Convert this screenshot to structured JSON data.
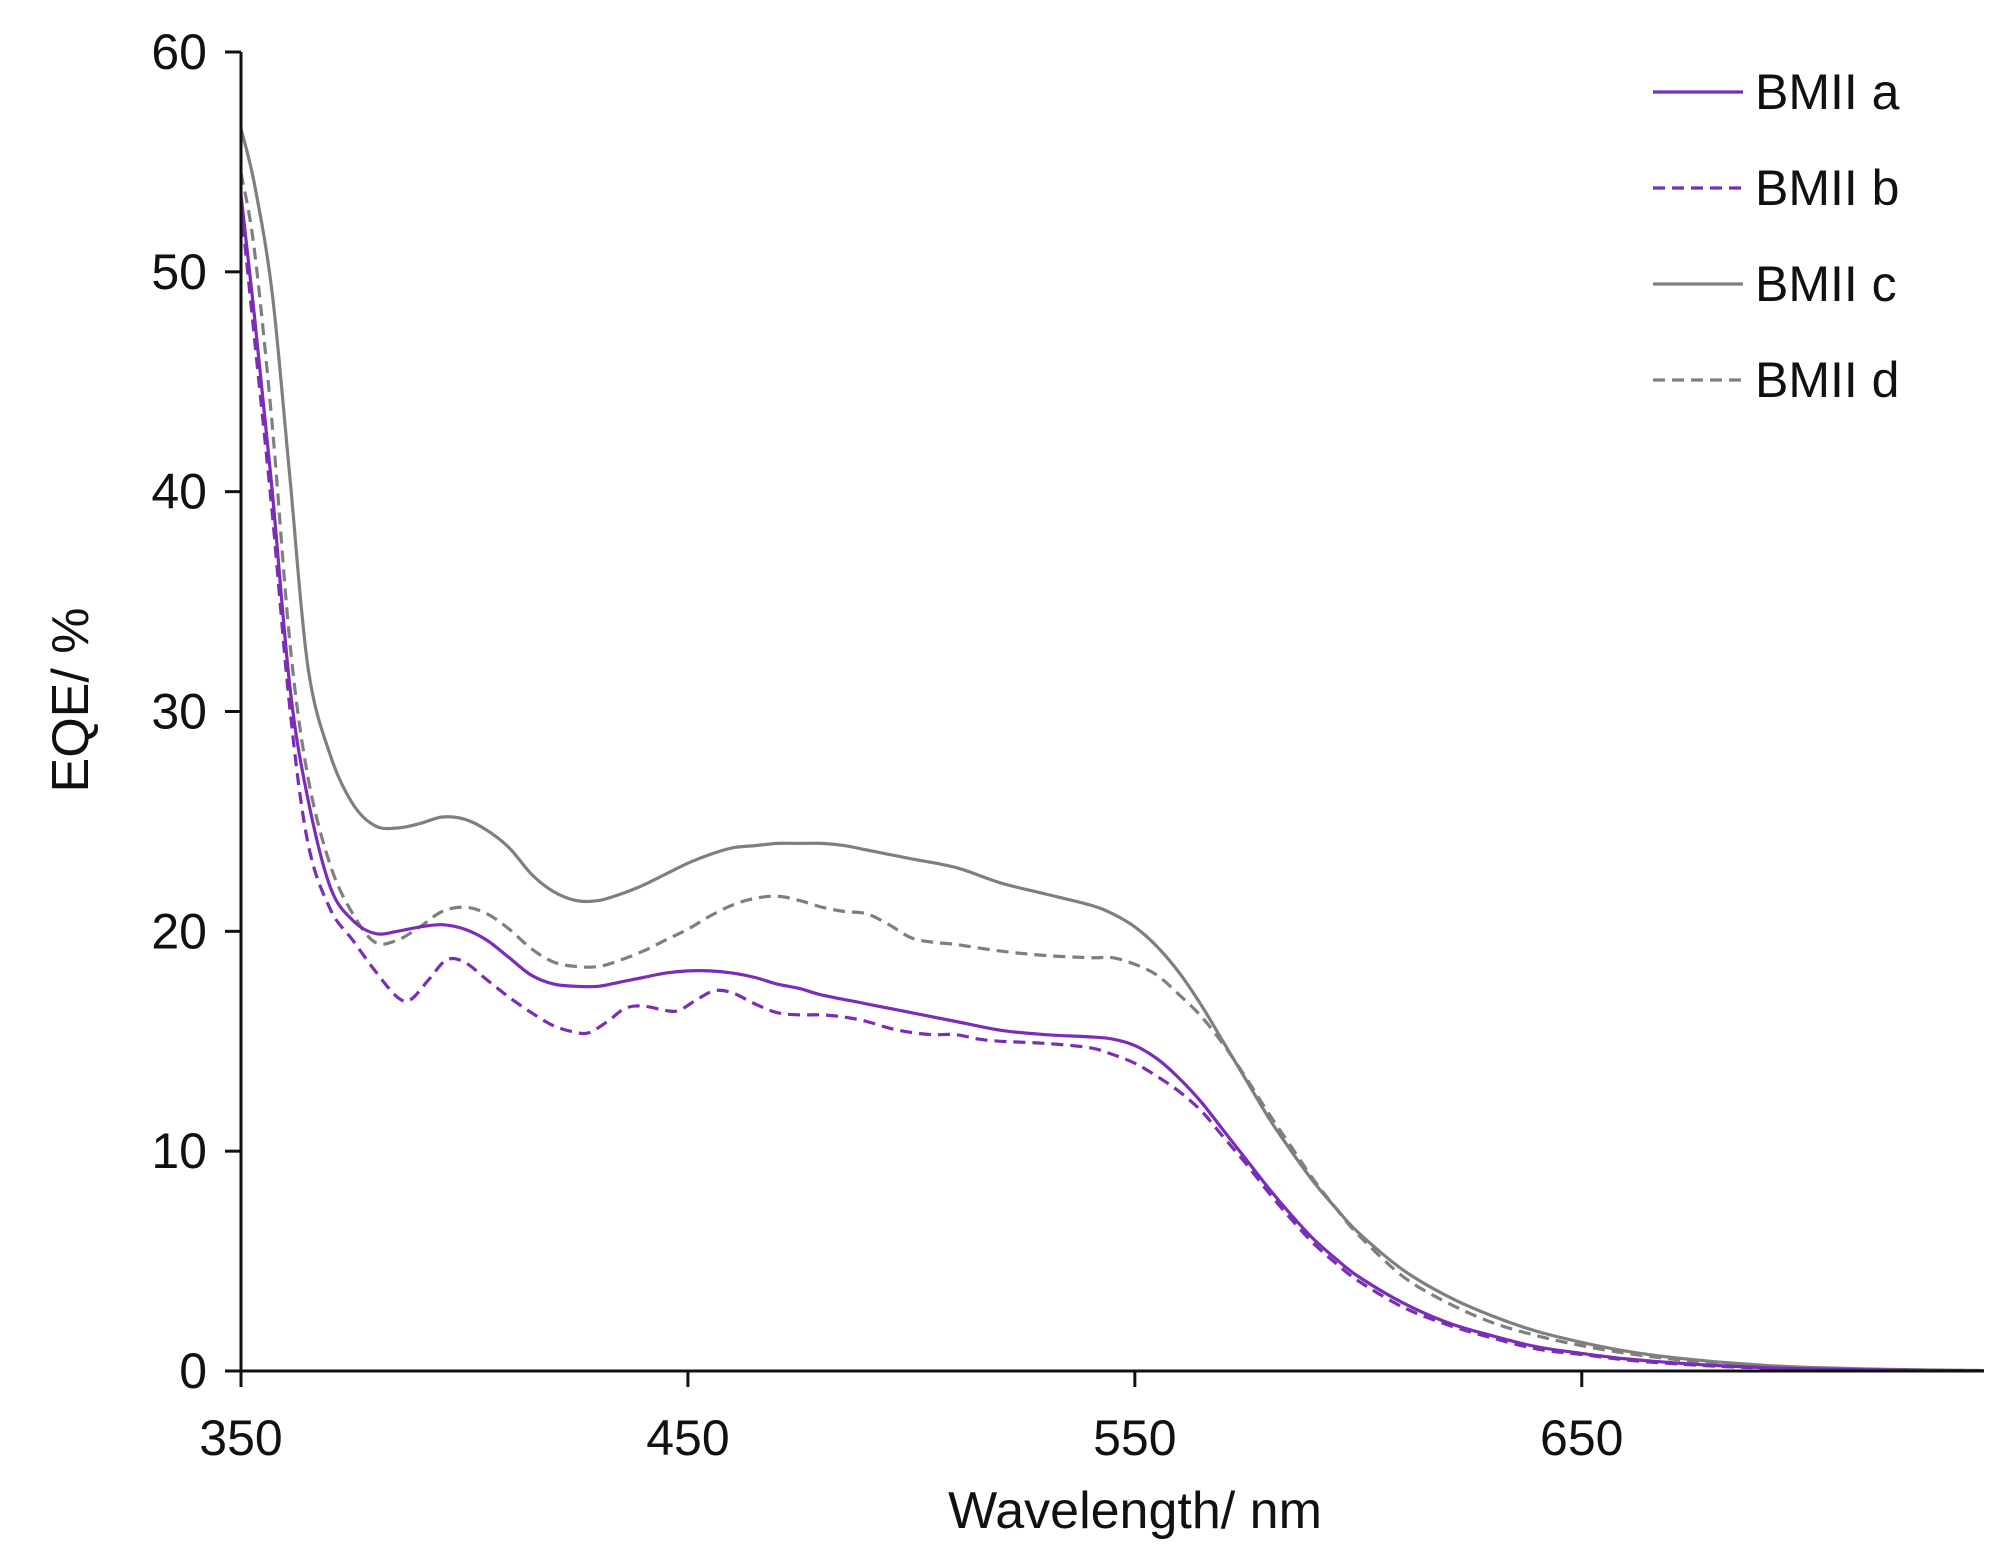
{
  "chart_data": {
    "type": "line",
    "title": "",
    "xlabel": "Wavelength/ nm",
    "ylabel": "EQE/ %",
    "xlim": [
      350,
      740
    ],
    "ylim": [
      0,
      60
    ],
    "xticks": [
      350,
      450,
      550,
      650
    ],
    "yticks": [
      0,
      10,
      20,
      30,
      40,
      50,
      60
    ],
    "grid": false,
    "legend_position": "top-right",
    "series": [
      {
        "name": "BMII a",
        "color": "#7B2DB5",
        "dash": "solid",
        "points": [
          [
            350,
            53.5
          ],
          [
            353,
            48
          ],
          [
            357,
            40
          ],
          [
            361,
            31
          ],
          [
            365,
            26
          ],
          [
            370,
            22
          ],
          [
            375,
            20.5
          ],
          [
            380,
            19.9
          ],
          [
            385,
            20
          ],
          [
            390,
            20.2
          ],
          [
            395,
            20.3
          ],
          [
            400,
            20.1
          ],
          [
            405,
            19.6
          ],
          [
            410,
            18.8
          ],
          [
            415,
            18
          ],
          [
            420,
            17.6
          ],
          [
            425,
            17.5
          ],
          [
            430,
            17.5
          ],
          [
            435,
            17.7
          ],
          [
            440,
            17.9
          ],
          [
            445,
            18.1
          ],
          [
            450,
            18.2
          ],
          [
            455,
            18.2
          ],
          [
            460,
            18.1
          ],
          [
            465,
            17.9
          ],
          [
            470,
            17.6
          ],
          [
            475,
            17.4
          ],
          [
            480,
            17.1
          ],
          [
            490,
            16.7
          ],
          [
            500,
            16.3
          ],
          [
            510,
            15.9
          ],
          [
            520,
            15.5
          ],
          [
            530,
            15.3
          ],
          [
            540,
            15.2
          ],
          [
            545,
            15.1
          ],
          [
            550,
            14.8
          ],
          [
            555,
            14.2
          ],
          [
            560,
            13.3
          ],
          [
            565,
            12.2
          ],
          [
            570,
            10.9
          ],
          [
            575,
            9.6
          ],
          [
            580,
            8.3
          ],
          [
            585,
            7.1
          ],
          [
            590,
            6
          ],
          [
            595,
            5.1
          ],
          [
            600,
            4.3
          ],
          [
            610,
            3.1
          ],
          [
            620,
            2.2
          ],
          [
            630,
            1.6
          ],
          [
            640,
            1.1
          ],
          [
            650,
            0.8
          ],
          [
            660,
            0.55
          ],
          [
            670,
            0.38
          ],
          [
            680,
            0.25
          ],
          [
            690,
            0.16
          ],
          [
            700,
            0.1
          ],
          [
            720,
            0.04
          ],
          [
            740,
            0.01
          ]
        ]
      },
      {
        "name": "BMII b",
        "color": "#7B2DB5",
        "dash": "dashed",
        "points": [
          [
            350,
            53
          ],
          [
            353,
            47
          ],
          [
            357,
            39
          ],
          [
            361,
            30
          ],
          [
            365,
            24
          ],
          [
            370,
            21
          ],
          [
            375,
            19.6
          ],
          [
            380,
            18.2
          ],
          [
            385,
            17
          ],
          [
            388,
            16.9
          ],
          [
            392,
            17.8
          ],
          [
            396,
            18.7
          ],
          [
            400,
            18.6
          ],
          [
            405,
            17.8
          ],
          [
            410,
            17
          ],
          [
            415,
            16.3
          ],
          [
            420,
            15.7
          ],
          [
            425,
            15.4
          ],
          [
            428,
            15.4
          ],
          [
            432,
            15.9
          ],
          [
            436,
            16.5
          ],
          [
            440,
            16.6
          ],
          [
            445,
            16.4
          ],
          [
            448,
            16.4
          ],
          [
            452,
            16.9
          ],
          [
            456,
            17.3
          ],
          [
            460,
            17.2
          ],
          [
            465,
            16.7
          ],
          [
            470,
            16.3
          ],
          [
            475,
            16.2
          ],
          [
            480,
            16.2
          ],
          [
            485,
            16.1
          ],
          [
            490,
            15.9
          ],
          [
            495,
            15.6
          ],
          [
            500,
            15.4
          ],
          [
            505,
            15.3
          ],
          [
            510,
            15.3
          ],
          [
            515,
            15.1
          ],
          [
            520,
            15
          ],
          [
            530,
            14.9
          ],
          [
            540,
            14.7
          ],
          [
            545,
            14.4
          ],
          [
            550,
            14
          ],
          [
            555,
            13.4
          ],
          [
            560,
            12.7
          ],
          [
            565,
            11.8
          ],
          [
            570,
            10.6
          ],
          [
            575,
            9.4
          ],
          [
            580,
            8.1
          ],
          [
            585,
            6.9
          ],
          [
            590,
            5.8
          ],
          [
            595,
            4.9
          ],
          [
            600,
            4.1
          ],
          [
            610,
            2.9
          ],
          [
            620,
            2.1
          ],
          [
            630,
            1.5
          ],
          [
            640,
            1
          ],
          [
            650,
            0.75
          ],
          [
            660,
            0.5
          ],
          [
            670,
            0.34
          ],
          [
            680,
            0.22
          ],
          [
            690,
            0.14
          ],
          [
            700,
            0.09
          ],
          [
            720,
            0.03
          ],
          [
            740,
            0.01
          ]
        ]
      },
      {
        "name": "BMII c",
        "color": "#7F7F7F",
        "dash": "solid",
        "points": [
          [
            350,
            56.5
          ],
          [
            353,
            54
          ],
          [
            357,
            49
          ],
          [
            361,
            40.5
          ],
          [
            365,
            32
          ],
          [
            370,
            28
          ],
          [
            375,
            25.8
          ],
          [
            380,
            24.8
          ],
          [
            385,
            24.7
          ],
          [
            390,
            24.9
          ],
          [
            395,
            25.2
          ],
          [
            400,
            25.1
          ],
          [
            405,
            24.6
          ],
          [
            410,
            23.8
          ],
          [
            415,
            22.6
          ],
          [
            420,
            21.8
          ],
          [
            425,
            21.4
          ],
          [
            430,
            21.4
          ],
          [
            435,
            21.7
          ],
          [
            440,
            22.1
          ],
          [
            445,
            22.6
          ],
          [
            450,
            23.1
          ],
          [
            455,
            23.5
          ],
          [
            460,
            23.8
          ],
          [
            465,
            23.9
          ],
          [
            470,
            24
          ],
          [
            475,
            24
          ],
          [
            480,
            24
          ],
          [
            485,
            23.9
          ],
          [
            490,
            23.7
          ],
          [
            495,
            23.5
          ],
          [
            500,
            23.3
          ],
          [
            510,
            22.9
          ],
          [
            520,
            22.2
          ],
          [
            530,
            21.7
          ],
          [
            540,
            21.2
          ],
          [
            545,
            20.8
          ],
          [
            550,
            20.2
          ],
          [
            555,
            19.3
          ],
          [
            560,
            18.1
          ],
          [
            565,
            16.6
          ],
          [
            570,
            14.9
          ],
          [
            575,
            13.2
          ],
          [
            580,
            11.5
          ],
          [
            585,
            10
          ],
          [
            590,
            8.6
          ],
          [
            595,
            7.4
          ],
          [
            600,
            6.3
          ],
          [
            610,
            4.6
          ],
          [
            620,
            3.4
          ],
          [
            630,
            2.5
          ],
          [
            640,
            1.8
          ],
          [
            650,
            1.3
          ],
          [
            660,
            0.9
          ],
          [
            670,
            0.62
          ],
          [
            680,
            0.42
          ],
          [
            690,
            0.27
          ],
          [
            700,
            0.17
          ],
          [
            720,
            0.07
          ],
          [
            740,
            0.02
          ]
        ]
      },
      {
        "name": "BMII d",
        "color": "#7F7F7F",
        "dash": "dashed",
        "points": [
          [
            350,
            54.5
          ],
          [
            353,
            51
          ],
          [
            357,
            43
          ],
          [
            361,
            33
          ],
          [
            365,
            27
          ],
          [
            370,
            23
          ],
          [
            375,
            20.8
          ],
          [
            380,
            19.5
          ],
          [
            385,
            19.6
          ],
          [
            390,
            20.2
          ],
          [
            395,
            20.9
          ],
          [
            400,
            21.1
          ],
          [
            405,
            20.8
          ],
          [
            410,
            20.1
          ],
          [
            415,
            19.2
          ],
          [
            420,
            18.6
          ],
          [
            425,
            18.4
          ],
          [
            430,
            18.4
          ],
          [
            435,
            18.7
          ],
          [
            440,
            19.1
          ],
          [
            445,
            19.6
          ],
          [
            450,
            20.1
          ],
          [
            455,
            20.7
          ],
          [
            460,
            21.2
          ],
          [
            465,
            21.5
          ],
          [
            470,
            21.6
          ],
          [
            475,
            21.4
          ],
          [
            480,
            21.1
          ],
          [
            485,
            20.9
          ],
          [
            490,
            20.8
          ],
          [
            495,
            20.3
          ],
          [
            500,
            19.7
          ],
          [
            505,
            19.5
          ],
          [
            510,
            19.4
          ],
          [
            520,
            19.1
          ],
          [
            530,
            18.9
          ],
          [
            540,
            18.8
          ],
          [
            545,
            18.8
          ],
          [
            550,
            18.5
          ],
          [
            555,
            18
          ],
          [
            560,
            17.1
          ],
          [
            565,
            16.1
          ],
          [
            570,
            14.8
          ],
          [
            575,
            13.3
          ],
          [
            580,
            11.7
          ],
          [
            585,
            10.2
          ],
          [
            590,
            8.7
          ],
          [
            595,
            7.4
          ],
          [
            600,
            6.2
          ],
          [
            610,
            4.3
          ],
          [
            620,
            3.1
          ],
          [
            630,
            2.2
          ],
          [
            640,
            1.6
          ],
          [
            650,
            1.15
          ],
          [
            660,
            0.8
          ],
          [
            670,
            0.55
          ],
          [
            680,
            0.37
          ],
          [
            690,
            0.24
          ],
          [
            700,
            0.15
          ],
          [
            720,
            0.05
          ],
          [
            740,
            0.02
          ]
        ]
      }
    ]
  }
}
